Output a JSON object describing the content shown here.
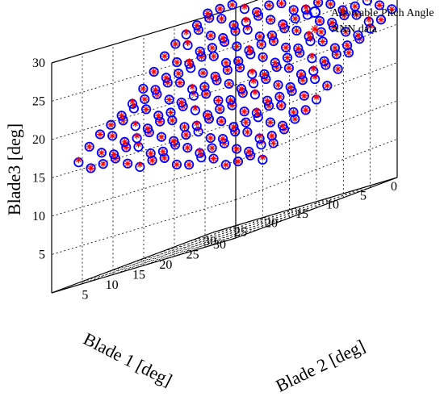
{
  "chart_data": {
    "type": "scatter",
    "title": "",
    "axes": {
      "x": {
        "label": "Blade 1 [deg]",
        "range": [
          0,
          30
        ],
        "ticks": [
          0,
          5,
          10,
          15,
          20,
          25,
          30
        ]
      },
      "y": {
        "label": "Blade 2 [deg]",
        "range": [
          0,
          30
        ],
        "ticks": [
          5,
          10,
          15,
          20,
          25,
          30
        ]
      },
      "z": {
        "label": "Blade3 [deg]",
        "range": [
          0,
          30
        ],
        "ticks": [
          5,
          10,
          15,
          20,
          25,
          30
        ]
      }
    },
    "grid": true,
    "legend_position": "top-right",
    "legend": [
      {
        "label": "Allowable Pitch Angle",
        "marker": "circle",
        "color": "#0000ff"
      },
      {
        "label": "ANN data",
        "marker": "asterisk",
        "color": "#ff0000"
      }
    ],
    "surface": {
      "description_of_points": "grid of (Blade1, Blade2, Blade3) points",
      "blade1_values": [
        0,
        2,
        4,
        6,
        8,
        10,
        12,
        14,
        16,
        18,
        20,
        22,
        24,
        26,
        28,
        30
      ],
      "blade2_values": [
        5,
        7,
        9,
        11,
        13,
        15,
        17,
        19,
        21,
        23,
        25,
        27,
        29
      ],
      "blade3_band_min": 6,
      "blade3_band_max": 29
    }
  }
}
